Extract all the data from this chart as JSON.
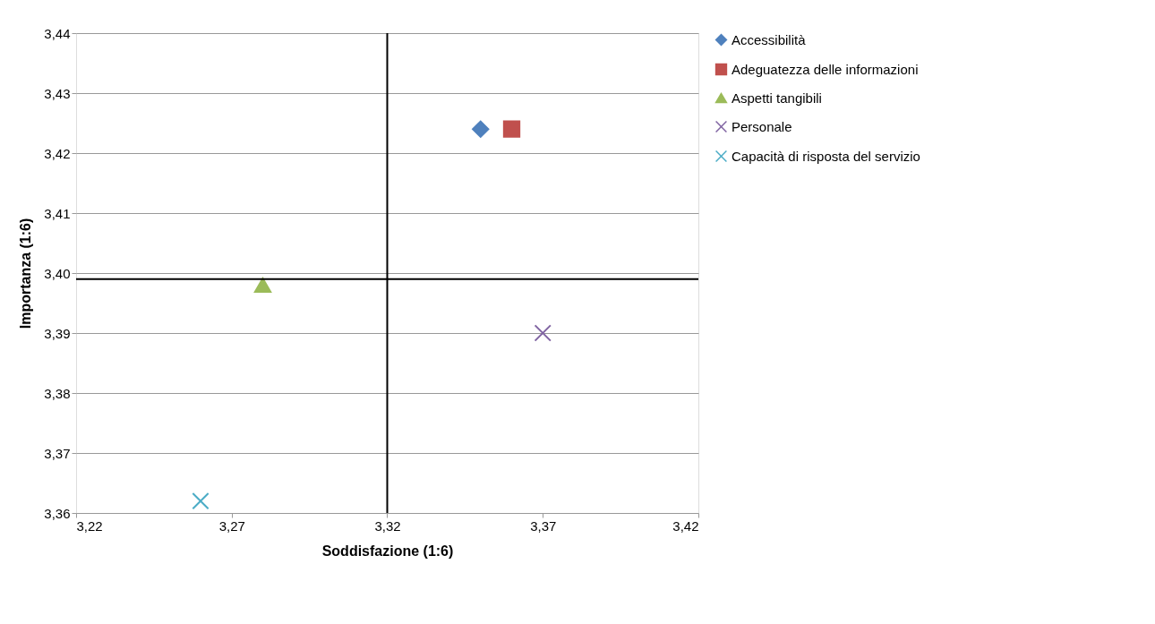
{
  "chart_data": {
    "type": "scatter",
    "xlabel": "Soddisfazione (1:6)",
    "ylabel": "Importanza (1:6)",
    "xlim": [
      3.22,
      3.42
    ],
    "ylim": [
      3.36,
      3.44
    ],
    "xticks": [
      {
        "value": 3.22,
        "label": "3,22"
      },
      {
        "value": 3.27,
        "label": "3,27"
      },
      {
        "value": 3.32,
        "label": "3,32"
      },
      {
        "value": 3.37,
        "label": "3,37"
      },
      {
        "value": 3.42,
        "label": "3,42"
      }
    ],
    "yticks": [
      {
        "value": 3.36,
        "label": "3,36"
      },
      {
        "value": 3.37,
        "label": "3,37"
      },
      {
        "value": 3.38,
        "label": "3,38"
      },
      {
        "value": 3.39,
        "label": "3,39"
      },
      {
        "value": 3.4,
        "label": "3,40"
      },
      {
        "value": 3.41,
        "label": "3,41"
      },
      {
        "value": 3.42,
        "label": "3,42"
      },
      {
        "value": 3.43,
        "label": "3,43"
      },
      {
        "value": 3.44,
        "label": "3,44"
      }
    ],
    "series": [
      {
        "name": "Accessibilità",
        "color": "#4f81bd",
        "marker": "diamond",
        "x": [
          3.35
        ],
        "values": [
          3.424
        ]
      },
      {
        "name": "Adeguatezza delle informazioni",
        "color": "#c0504d",
        "marker": "square",
        "x": [
          3.36
        ],
        "values": [
          3.424
        ]
      },
      {
        "name": "Aspetti tangibili",
        "color": "#9bbb59",
        "marker": "triangle",
        "x": [
          3.28
        ],
        "values": [
          3.398
        ]
      },
      {
        "name": "Personale",
        "color": "#8064a2",
        "marker": "cross",
        "x": [
          3.37
        ],
        "values": [
          3.39
        ]
      },
      {
        "name": "Capacità di risposta del servizio",
        "color": "#4bacc6",
        "marker": "cross",
        "x": [
          3.26
        ],
        "values": [
          3.362
        ]
      }
    ],
    "ref_lines": [
      {
        "axis": "x",
        "value": 3.32,
        "color": "#000000"
      },
      {
        "axis": "y",
        "value": 3.399,
        "color": "#000000"
      }
    ],
    "grid": "y",
    "legend": "right"
  }
}
